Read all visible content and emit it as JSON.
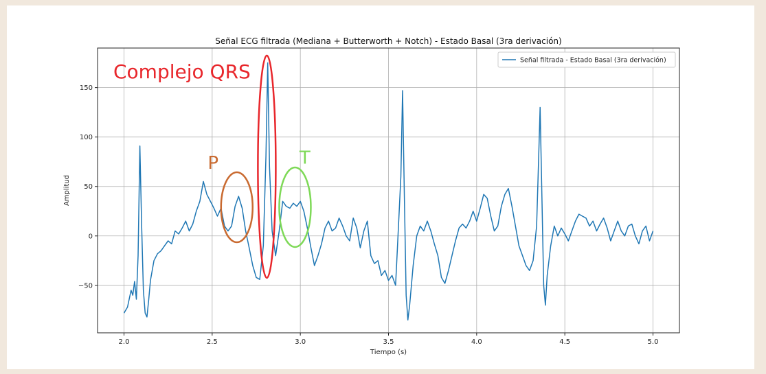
{
  "chart_data": {
    "type": "line",
    "title": "Señal ECG filtrada (Mediana + Butterworth + Notch) - Estado Basal (3ra derivación)",
    "xlabel": "Tiempo (s)",
    "ylabel": "Amplitud",
    "xlim": [
      1.85,
      5.15
    ],
    "ylim": [
      -98,
      190
    ],
    "xticks": [
      2.0,
      2.5,
      3.0,
      3.5,
      4.0,
      4.5,
      5.0
    ],
    "xtick_labels": [
      "2.0",
      "2.5",
      "3.0",
      "3.5",
      "4.0",
      "4.5",
      "5.0"
    ],
    "yticks": [
      -50,
      0,
      50,
      100,
      150
    ],
    "ytick_labels": [
      "−50",
      "0",
      "50",
      "100",
      "150"
    ],
    "grid": true,
    "legend_position": "top-right",
    "series": [
      {
        "name": "Señal filtrada - Estado Basal (3ra derivación)",
        "color": "#1f77b4",
        "points": [
          [
            2.0,
            -78
          ],
          [
            2.02,
            -72
          ],
          [
            2.04,
            -55
          ],
          [
            2.05,
            -60
          ],
          [
            2.06,
            -46
          ],
          [
            2.07,
            -64
          ],
          [
            2.08,
            -20
          ],
          [
            2.09,
            91
          ],
          [
            2.1,
            10
          ],
          [
            2.11,
            -55
          ],
          [
            2.12,
            -78
          ],
          [
            2.13,
            -82
          ],
          [
            2.14,
            -65
          ],
          [
            2.15,
            -45
          ],
          [
            2.17,
            -25
          ],
          [
            2.19,
            -18
          ],
          [
            2.21,
            -15
          ],
          [
            2.23,
            -10
          ],
          [
            2.25,
            -5
          ],
          [
            2.27,
            -8
          ],
          [
            2.29,
            5
          ],
          [
            2.31,
            2
          ],
          [
            2.33,
            8
          ],
          [
            2.35,
            15
          ],
          [
            2.37,
            5
          ],
          [
            2.39,
            12
          ],
          [
            2.41,
            25
          ],
          [
            2.43,
            35
          ],
          [
            2.45,
            55
          ],
          [
            2.47,
            42
          ],
          [
            2.49,
            35
          ],
          [
            2.51,
            28
          ],
          [
            2.53,
            20
          ],
          [
            2.55,
            28
          ],
          [
            2.57,
            10
          ],
          [
            2.59,
            5
          ],
          [
            2.61,
            10
          ],
          [
            2.63,
            30
          ],
          [
            2.65,
            40
          ],
          [
            2.67,
            28
          ],
          [
            2.69,
            5
          ],
          [
            2.71,
            -12
          ],
          [
            2.73,
            -30
          ],
          [
            2.75,
            -42
          ],
          [
            2.77,
            -44
          ],
          [
            2.79,
            -10
          ],
          [
            2.805,
            80
          ],
          [
            2.815,
            175
          ],
          [
            2.825,
            70
          ],
          [
            2.84,
            5
          ],
          [
            2.86,
            -20
          ],
          [
            2.88,
            5
          ],
          [
            2.9,
            35
          ],
          [
            2.92,
            30
          ],
          [
            2.94,
            28
          ],
          [
            2.96,
            33
          ],
          [
            2.98,
            30
          ],
          [
            3.0,
            35
          ],
          [
            3.02,
            25
          ],
          [
            3.04,
            8
          ],
          [
            3.06,
            -12
          ],
          [
            3.08,
            -30
          ],
          [
            3.1,
            -20
          ],
          [
            3.12,
            -8
          ],
          [
            3.14,
            8
          ],
          [
            3.16,
            15
          ],
          [
            3.18,
            5
          ],
          [
            3.2,
            8
          ],
          [
            3.22,
            18
          ],
          [
            3.24,
            10
          ],
          [
            3.26,
            0
          ],
          [
            3.28,
            -5
          ],
          [
            3.3,
            18
          ],
          [
            3.32,
            8
          ],
          [
            3.34,
            -12
          ],
          [
            3.36,
            5
          ],
          [
            3.38,
            15
          ],
          [
            3.4,
            -20
          ],
          [
            3.42,
            -28
          ],
          [
            3.44,
            -25
          ],
          [
            3.46,
            -40
          ],
          [
            3.48,
            -35
          ],
          [
            3.5,
            -45
          ],
          [
            3.52,
            -40
          ],
          [
            3.54,
            -50
          ],
          [
            3.55,
            -15
          ],
          [
            3.57,
            60
          ],
          [
            3.58,
            147
          ],
          [
            3.59,
            40
          ],
          [
            3.6,
            -60
          ],
          [
            3.61,
            -85
          ],
          [
            3.62,
            -70
          ],
          [
            3.64,
            -30
          ],
          [
            3.66,
            0
          ],
          [
            3.68,
            10
          ],
          [
            3.7,
            5
          ],
          [
            3.72,
            15
          ],
          [
            3.74,
            5
          ],
          [
            3.76,
            -8
          ],
          [
            3.78,
            -20
          ],
          [
            3.8,
            -42
          ],
          [
            3.82,
            -48
          ],
          [
            3.84,
            -35
          ],
          [
            3.86,
            -20
          ],
          [
            3.88,
            -5
          ],
          [
            3.9,
            8
          ],
          [
            3.92,
            12
          ],
          [
            3.94,
            8
          ],
          [
            3.96,
            15
          ],
          [
            3.98,
            25
          ],
          [
            4.0,
            15
          ],
          [
            4.02,
            28
          ],
          [
            4.04,
            42
          ],
          [
            4.06,
            38
          ],
          [
            4.08,
            20
          ],
          [
            4.1,
            5
          ],
          [
            4.12,
            10
          ],
          [
            4.14,
            30
          ],
          [
            4.16,
            42
          ],
          [
            4.18,
            48
          ],
          [
            4.2,
            30
          ],
          [
            4.22,
            10
          ],
          [
            4.24,
            -10
          ],
          [
            4.26,
            -20
          ],
          [
            4.28,
            -30
          ],
          [
            4.3,
            -35
          ],
          [
            4.32,
            -25
          ],
          [
            4.34,
            10
          ],
          [
            4.35,
            70
          ],
          [
            4.36,
            130
          ],
          [
            4.37,
            40
          ],
          [
            4.38,
            -50
          ],
          [
            4.39,
            -70
          ],
          [
            4.4,
            -40
          ],
          [
            4.42,
            -10
          ],
          [
            4.44,
            10
          ],
          [
            4.46,
            0
          ],
          [
            4.48,
            8
          ],
          [
            4.5,
            2
          ],
          [
            4.52,
            -5
          ],
          [
            4.54,
            5
          ],
          [
            4.56,
            15
          ],
          [
            4.58,
            22
          ],
          [
            4.6,
            20
          ],
          [
            4.62,
            18
          ],
          [
            4.64,
            10
          ],
          [
            4.66,
            15
          ],
          [
            4.68,
            5
          ],
          [
            4.7,
            12
          ],
          [
            4.72,
            18
          ],
          [
            4.74,
            8
          ],
          [
            4.76,
            -5
          ],
          [
            4.78,
            5
          ],
          [
            4.8,
            15
          ],
          [
            4.82,
            5
          ],
          [
            4.84,
            0
          ],
          [
            4.86,
            10
          ],
          [
            4.88,
            12
          ],
          [
            4.9,
            0
          ],
          [
            4.92,
            -8
          ],
          [
            4.94,
            5
          ],
          [
            4.96,
            10
          ],
          [
            4.98,
            -5
          ],
          [
            5.0,
            5
          ]
        ]
      }
    ],
    "annotations": [
      {
        "text": "Complejo QRS",
        "color": "#e8262b"
      },
      {
        "text": "P",
        "color": "#c96a30"
      },
      {
        "text": "T",
        "color": "#7ed957"
      }
    ]
  }
}
